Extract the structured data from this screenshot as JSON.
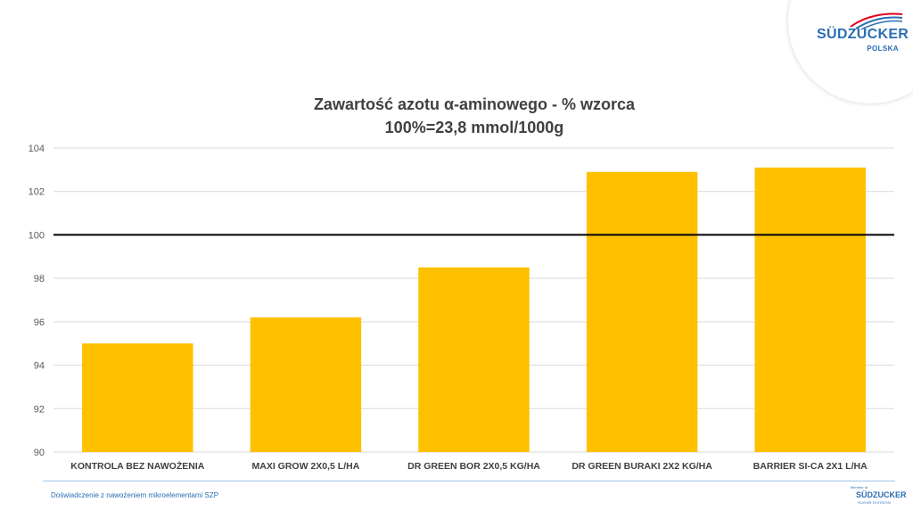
{
  "logo": {
    "name": "SÜDZUCKER",
    "subtitle": "POLSKA"
  },
  "title": {
    "line1": "Zawartość azotu α-aminowego - % wzorca",
    "line2": "100%=23,8 mmol/1000g"
  },
  "chart_data": {
    "type": "bar",
    "title": "Zawartość azotu α-aminowego - % wzorca 100%=23,8 mmol/1000g",
    "categories": [
      "KONTROLA BEZ NAWOŻENIA",
      "MAXI GROW 2X0,5 L/HA",
      "DR GREEN BOR 2X0,5 KG/HA",
      "DR GREEN BURAKI 2X2 KG/HA",
      "BARRIER SI-CA 2X1 L/HA"
    ],
    "values": [
      95.0,
      96.2,
      98.5,
      102.9,
      103.1
    ],
    "ylim": [
      90,
      104
    ],
    "yticks": [
      "90",
      "92",
      "94",
      "96",
      "98",
      "100",
      "102",
      "104"
    ],
    "reference_line": 100,
    "grid": true,
    "bar_color": "#ffc000",
    "reference_color": "#000000"
  },
  "footer": {
    "text": "Doświadczenie z nawożeniem mikroelementami SZP",
    "logo_small": "Member of",
    "logo_name": "SÜDZUCKER",
    "logo_sub": "SUGAR DIVISION"
  }
}
